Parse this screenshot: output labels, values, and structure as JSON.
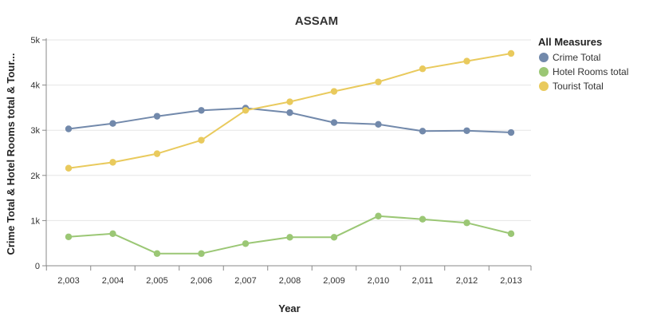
{
  "chart_data": {
    "type": "line",
    "title": "ASSAM",
    "xlabel": "Year",
    "ylabel": "Crime Total & Hotel Rooms total & Tour...",
    "x": [
      "2,003",
      "2,004",
      "2,005",
      "2,006",
      "2,007",
      "2,008",
      "2,009",
      "2,010",
      "2,011",
      "2,012",
      "2,013"
    ],
    "ylim": [
      0,
      5000
    ],
    "yticks": [
      0,
      1000,
      2000,
      3000,
      4000,
      5000
    ],
    "ytick_labels": [
      "0",
      "1k",
      "2k",
      "3k",
      "4k",
      "5k"
    ],
    "grid": true,
    "legend": {
      "title": "All Measures",
      "position": "right"
    },
    "series": [
      {
        "name": "Crime Total",
        "color": "#7289ab",
        "values": [
          3030,
          3150,
          3310,
          3440,
          3490,
          3390,
          3170,
          3130,
          2980,
          2990,
          2950
        ]
      },
      {
        "name": "Hotel Rooms total",
        "color": "#9bc775",
        "values": [
          640,
          710,
          270,
          270,
          490,
          630,
          630,
          1100,
          1030,
          950,
          710
        ]
      },
      {
        "name": "Tourist Total",
        "color": "#e9ca5d",
        "values": [
          2160,
          2290,
          2480,
          2780,
          3440,
          3630,
          3860,
          4070,
          4360,
          4530,
          4700
        ]
      }
    ]
  }
}
